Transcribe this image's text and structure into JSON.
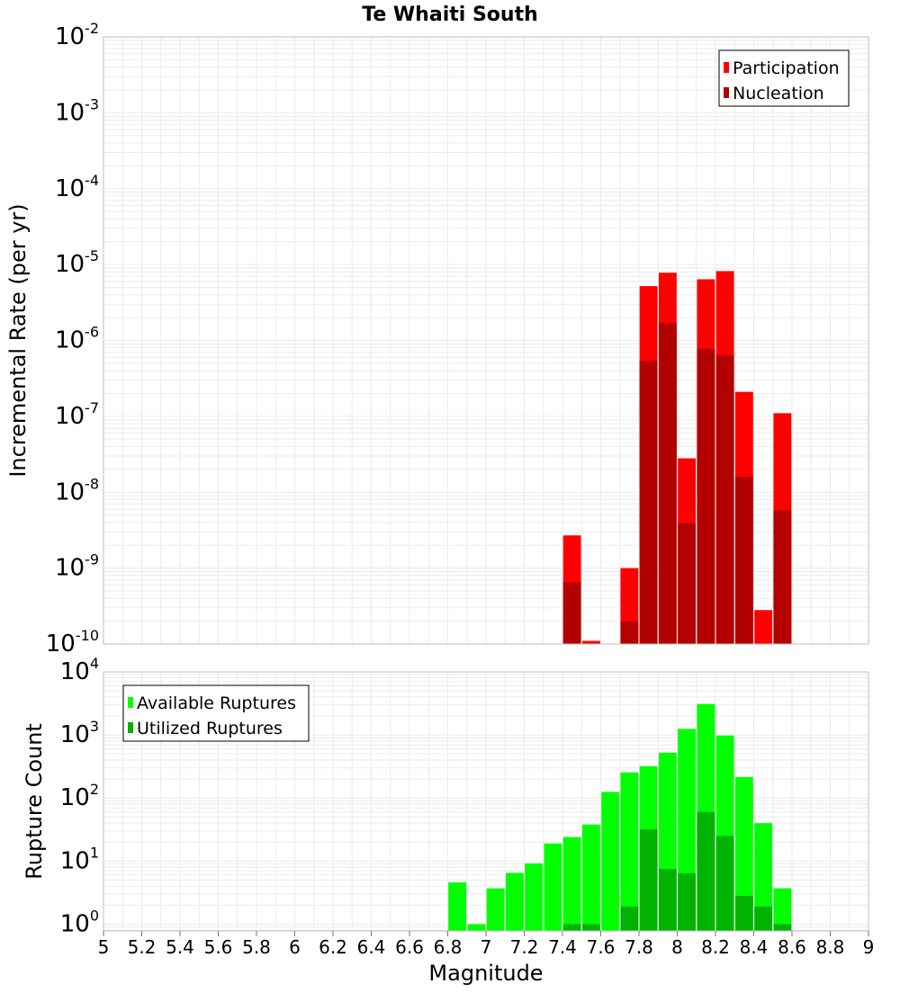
{
  "title": "Te Whaiti South",
  "colors": {
    "participation": "#ff0000",
    "nucleation": "#b30000",
    "available": "#00ff00",
    "utilized": "#00b300",
    "grid": "#ebebeb",
    "frame": "#bdbdbd"
  },
  "chart_data": [
    {
      "type": "bar",
      "title": "Te Whaiti South",
      "xlabel": "Magnitude",
      "ylabel": "Incremental Rate (per yr)",
      "yscale": "log",
      "xlim": [
        5,
        9
      ],
      "ylim": [
        1e-10,
        0.01
      ],
      "yticks": [
        {
          "base": "10",
          "exp": "-10"
        },
        {
          "base": "10",
          "exp": "-9"
        },
        {
          "base": "10",
          "exp": "-8"
        },
        {
          "base": "10",
          "exp": "-7"
        },
        {
          "base": "10",
          "exp": "-6"
        },
        {
          "base": "10",
          "exp": "-5"
        },
        {
          "base": "10",
          "exp": "-4"
        },
        {
          "base": "10",
          "exp": "-3"
        },
        {
          "base": "10",
          "exp": "-2"
        }
      ],
      "grid": true,
      "legend_position": "top-right",
      "series": [
        {
          "name": "Participation",
          "color": "#ff0000",
          "points": [
            {
              "x": 7.45,
              "y": 2.7e-09
            },
            {
              "x": 7.55,
              "y": 1.1e-10
            },
            {
              "x": 7.75,
              "y": 1e-09
            },
            {
              "x": 7.85,
              "y": 5.2e-06
            },
            {
              "x": 7.95,
              "y": 7.8e-06
            },
            {
              "x": 8.05,
              "y": 2.8e-08
            },
            {
              "x": 8.15,
              "y": 6.4e-06
            },
            {
              "x": 8.25,
              "y": 8.2e-06
            },
            {
              "x": 8.35,
              "y": 2.1e-07
            },
            {
              "x": 8.45,
              "y": 2.8e-10
            },
            {
              "x": 8.55,
              "y": 1.1e-07
            }
          ]
        },
        {
          "name": "Nucleation",
          "color": "#b30000",
          "points": [
            {
              "x": 7.45,
              "y": 6.5e-10
            },
            {
              "x": 7.75,
              "y": 2e-10
            },
            {
              "x": 7.85,
              "y": 5.4e-07
            },
            {
              "x": 7.95,
              "y": 1.7e-06
            },
            {
              "x": 8.05,
              "y": 3.9e-09
            },
            {
              "x": 8.15,
              "y": 7.8e-07
            },
            {
              "x": 8.25,
              "y": 6.4e-07
            },
            {
              "x": 8.35,
              "y": 1.6e-08
            },
            {
              "x": 8.55,
              "y": 5.8e-09
            }
          ]
        }
      ]
    },
    {
      "type": "bar",
      "xlabel": "Magnitude",
      "ylabel": "Rupture Count",
      "yscale": "log",
      "xlim": [
        5,
        9
      ],
      "ylim": [
        0.78,
        10000
      ],
      "xticks": [
        "5",
        "5.2",
        "5.4",
        "5.6",
        "5.8",
        "6",
        "6.2",
        "6.4",
        "6.6",
        "6.8",
        "7",
        "7.2",
        "7.4",
        "7.6",
        "7.8",
        "8",
        "8.2",
        "8.4",
        "8.6",
        "8.8",
        "9"
      ],
      "yticks": [
        {
          "base": "10",
          "exp": "0"
        },
        {
          "base": "10",
          "exp": "1"
        },
        {
          "base": "10",
          "exp": "2"
        },
        {
          "base": "10",
          "exp": "3"
        },
        {
          "base": "10",
          "exp": "4"
        }
      ],
      "grid": true,
      "legend_position": "top-left",
      "series": [
        {
          "name": "Available Ruptures",
          "color": "#00ff00",
          "points": [
            {
              "x": 6.85,
              "y": 4.6
            },
            {
              "x": 6.95,
              "y": 1
            },
            {
              "x": 7.05,
              "y": 3.7
            },
            {
              "x": 7.15,
              "y": 6.5
            },
            {
              "x": 7.25,
              "y": 9.2
            },
            {
              "x": 7.35,
              "y": 19
            },
            {
              "x": 7.45,
              "y": 24
            },
            {
              "x": 7.55,
              "y": 38
            },
            {
              "x": 7.65,
              "y": 125
            },
            {
              "x": 7.75,
              "y": 255
            },
            {
              "x": 7.85,
              "y": 320
            },
            {
              "x": 7.95,
              "y": 525
            },
            {
              "x": 8.05,
              "y": 1250
            },
            {
              "x": 8.15,
              "y": 3100
            },
            {
              "x": 8.25,
              "y": 980
            },
            {
              "x": 8.35,
              "y": 215
            },
            {
              "x": 8.45,
              "y": 40
            },
            {
              "x": 8.55,
              "y": 3.7
            }
          ]
        },
        {
          "name": "Utilized Ruptures",
          "color": "#00b300",
          "points": [
            {
              "x": 7.45,
              "y": 1
            },
            {
              "x": 7.55,
              "y": 1
            },
            {
              "x": 7.75,
              "y": 1.9
            },
            {
              "x": 7.85,
              "y": 32
            },
            {
              "x": 7.95,
              "y": 7.5
            },
            {
              "x": 8.05,
              "y": 6.4
            },
            {
              "x": 8.15,
              "y": 60
            },
            {
              "x": 8.25,
              "y": 25
            },
            {
              "x": 8.35,
              "y": 2.8
            },
            {
              "x": 8.45,
              "y": 1.9
            },
            {
              "x": 8.55,
              "y": 1
            }
          ]
        }
      ]
    }
  ]
}
